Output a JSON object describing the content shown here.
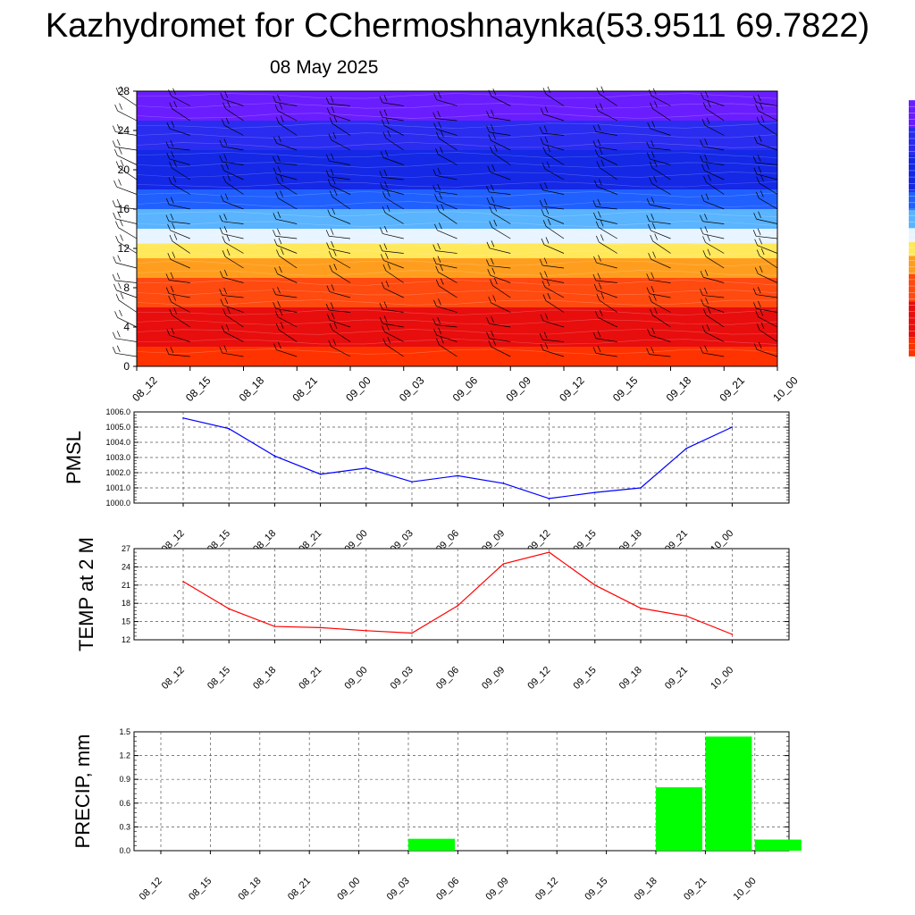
{
  "header": {
    "title": "Kazhydromet for CChermoshnaynka(53.9511 69.7822)",
    "date": "08 May 2025"
  },
  "colors": {
    "pmsl_line": "#0000ff",
    "temp_line": "#ff0000",
    "precip_bar": "#00ff00",
    "grid": "#555555"
  },
  "chart_data": [
    {
      "id": "profile",
      "type": "heatmap",
      "title": "",
      "xlabel": "",
      "ylabel": "",
      "x": [
        "08_12",
        "08_15",
        "08_18",
        "08_21",
        "09_00",
        "09_03",
        "09_06",
        "09_09",
        "09_12",
        "09_15",
        "09_18",
        "09_21",
        "10_00"
      ],
      "yticks": [
        "0",
        "4",
        "8",
        "12",
        "16",
        "20",
        "24",
        "28"
      ],
      "ylim": [
        0,
        28
      ],
      "color_bands": [
        {
          "from": 0,
          "to": 2,
          "color": "#ff3300"
        },
        {
          "from": 2,
          "to": 6,
          "color": "#e80e0e"
        },
        {
          "from": 6,
          "to": 9,
          "color": "#ff4a10"
        },
        {
          "from": 9,
          "to": 11,
          "color": "#ff9e1e"
        },
        {
          "from": 11,
          "to": 12.5,
          "color": "#ffe85a"
        },
        {
          "from": 12.5,
          "to": 14,
          "color": "#e8f4ff"
        },
        {
          "from": 14,
          "to": 16,
          "color": "#5ab4ff"
        },
        {
          "from": 16,
          "to": 18,
          "color": "#2060ff"
        },
        {
          "from": 18,
          "to": 22,
          "color": "#1428e6"
        },
        {
          "from": 22,
          "to": 25,
          "color": "#2a2cf0"
        },
        {
          "from": 25,
          "to": 28,
          "color": "#6a1eff"
        }
      ],
      "wind_barbs": true
    },
    {
      "id": "pmsl",
      "type": "line",
      "ylabel": "PMSL",
      "x": [
        "08_12",
        "08_15",
        "08_18",
        "08_21",
        "09_00",
        "09_03",
        "09_06",
        "09_09",
        "09_12",
        "09_15",
        "09_18",
        "09_21",
        "10_00"
      ],
      "values": [
        1005.6,
        1004.9,
        1003.1,
        1001.9,
        1002.3,
        1001.4,
        1001.8,
        1001.3,
        1000.3,
        1000.7,
        1001.0,
        1003.6,
        1005.0
      ],
      "yticks": [
        "1000.0",
        "1001.0",
        "1002.0",
        "1003.0",
        "1004.0",
        "1005.0",
        "1006.0"
      ],
      "ylim": [
        1000,
        1006
      ],
      "grid": true
    },
    {
      "id": "temp",
      "type": "line",
      "ylabel": "TEMP at 2 M",
      "x": [
        "08_12",
        "08_15",
        "08_18",
        "08_21",
        "09_00",
        "09_03",
        "09_06",
        "09_09",
        "09_12",
        "09_15",
        "09_18",
        "09_21",
        "10_00"
      ],
      "values": [
        21.6,
        17.1,
        14.2,
        14.0,
        13.5,
        13.1,
        17.6,
        24.5,
        26.4,
        21.0,
        17.2,
        15.9,
        12.9
      ],
      "yticks": [
        "12",
        "15",
        "18",
        "21",
        "24",
        "27"
      ],
      "ylim": [
        12,
        27
      ],
      "grid": true
    },
    {
      "id": "precip",
      "type": "bar",
      "ylabel": "PRECIP, mm",
      "x": [
        "08_12",
        "08_15",
        "08_18",
        "08_21",
        "09_00",
        "09_03",
        "09_06",
        "09_09",
        "09_12",
        "09_15",
        "09_18",
        "09_21",
        "10_00"
      ],
      "values": [
        0,
        0,
        0,
        0,
        0,
        0.15,
        0,
        0,
        0,
        0,
        0.8,
        1.44,
        0.14
      ],
      "yticks": [
        "0.0",
        "0.3",
        "0.6",
        "0.9",
        "1.2",
        "1.5"
      ],
      "ylim": [
        0,
        1.5
      ],
      "grid": true
    }
  ]
}
